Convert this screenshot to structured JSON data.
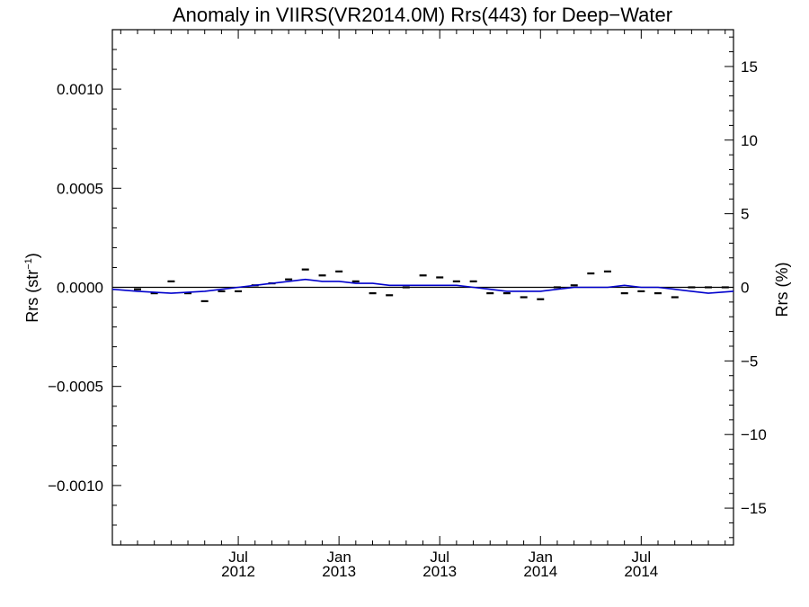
{
  "chart_data": {
    "type": "scatter",
    "title": "Anomaly in VIIRS(VR2014.0M) Rrs(443) for Deep−Water",
    "ylabel_left": {
      "base": "Rrs (str",
      "sup": "−1",
      "end": ")"
    },
    "ylabel_right": "Rrs (%)",
    "xlim": [
      2011.875,
      2014.958
    ],
    "ylim_left": [
      -0.0013,
      0.0013
    ],
    "ylim_right": [
      -17.5,
      17.5
    ],
    "x_ticks": [
      {
        "line1": "Jul",
        "line2": "2012",
        "x": 2012.5
      },
      {
        "line1": "Jan",
        "line2": "2013",
        "x": 2013.0
      },
      {
        "line1": "Jul",
        "line2": "2013",
        "x": 2013.5
      },
      {
        "line1": "Jan",
        "line2": "2014",
        "x": 2014.0
      },
      {
        "line1": "Jul",
        "line2": "2014",
        "x": 2014.5
      }
    ],
    "y_ticks_left": [
      {
        "label": "0.0010",
        "v": 0.001
      },
      {
        "label": "0.0005",
        "v": 0.0005
      },
      {
        "label": "0.0000",
        "v": 0.0
      },
      {
        "label": "−0.0005",
        "v": -0.0005
      },
      {
        "label": "−0.0010",
        "v": -0.001
      }
    ],
    "y_ticks_right": [
      {
        "label": "15",
        "v": 15
      },
      {
        "label": "10",
        "v": 10
      },
      {
        "label": "5",
        "v": 5
      },
      {
        "label": "0",
        "v": 0
      },
      {
        "label": "−5",
        "v": -5
      },
      {
        "label": "−10",
        "v": -10
      },
      {
        "label": "−15",
        "v": -15
      }
    ],
    "series": [
      {
        "kind": "monthly_anomaly_markers",
        "color": "#000000",
        "x": [
          2012.0,
          2012.083,
          2012.167,
          2012.25,
          2012.333,
          2012.417,
          2012.5,
          2012.583,
          2012.667,
          2012.75,
          2012.833,
          2012.917,
          2013.0,
          2013.083,
          2013.167,
          2013.25,
          2013.333,
          2013.417,
          2013.5,
          2013.583,
          2013.667,
          2013.75,
          2013.833,
          2013.917,
          2014.0,
          2014.083,
          2014.167,
          2014.25,
          2014.333,
          2014.417,
          2014.5,
          2014.583,
          2014.667,
          2014.75,
          2014.833,
          2014.917
        ],
        "y": [
          -1e-05,
          -3e-05,
          3e-05,
          -3e-05,
          -7e-05,
          -2e-05,
          -2e-05,
          1e-05,
          2e-05,
          4e-05,
          9e-05,
          6e-05,
          8e-05,
          3e-05,
          -3e-05,
          -4e-05,
          0.0,
          6e-05,
          5e-05,
          3e-05,
          3e-05,
          -3e-05,
          -3e-05,
          -5e-05,
          -6e-05,
          0.0,
          1e-05,
          7e-05,
          8e-05,
          -3e-05,
          -2e-05,
          -3e-05,
          -5e-05,
          0.0,
          0.0,
          0.0
        ]
      },
      {
        "kind": "smoothed_line",
        "color": "#0000cc",
        "x": [
          2011.875,
          2012.0,
          2012.167,
          2012.333,
          2012.417,
          2012.5,
          2012.583,
          2012.667,
          2012.75,
          2012.833,
          2012.917,
          2013.0,
          2013.083,
          2013.167,
          2013.25,
          2013.333,
          2013.417,
          2013.5,
          2013.583,
          2013.667,
          2013.75,
          2013.833,
          2013.917,
          2014.0,
          2014.083,
          2014.167,
          2014.25,
          2014.333,
          2014.417,
          2014.5,
          2014.583,
          2014.667,
          2014.75,
          2014.833,
          2014.958
        ],
        "y": [
          -1e-05,
          -2e-05,
          -3e-05,
          -2e-05,
          -1e-05,
          0.0,
          1e-05,
          2e-05,
          3e-05,
          4e-05,
          3e-05,
          3e-05,
          2e-05,
          2e-05,
          1e-05,
          1e-05,
          1e-05,
          1e-05,
          1e-05,
          0.0,
          -1e-05,
          -2e-05,
          -2e-05,
          -2e-05,
          -1e-05,
          0.0,
          0.0,
          0.0,
          1e-05,
          0.0,
          0.0,
          -1e-05,
          -2e-05,
          -3e-05,
          -2e-05
        ]
      }
    ],
    "zero_line": true,
    "grid": false
  }
}
